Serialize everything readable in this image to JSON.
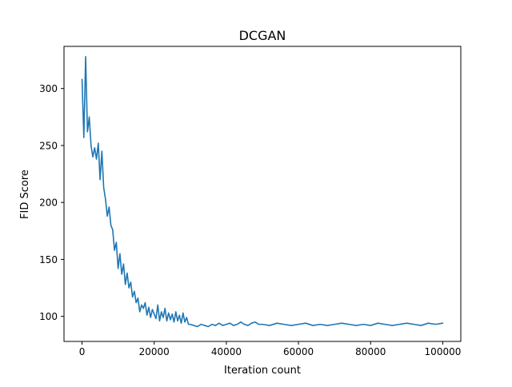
{
  "chart_data": {
    "type": "line",
    "title": "DCGAN",
    "xlabel": "Iteration count",
    "ylabel": "FID Score",
    "xlim": [
      -5000,
      105000
    ],
    "ylim": [
      78,
      337
    ],
    "xticks": [
      0,
      20000,
      40000,
      60000,
      80000,
      100000
    ],
    "yticks": [
      100,
      150,
      200,
      250,
      300
    ],
    "grid": false,
    "legend": "none",
    "series": [
      {
        "color": "#1f77b4",
        "x": [
          0,
          500,
          1000,
          1500,
          2000,
          2500,
          3000,
          3500,
          4000,
          4500,
          5000,
          5500,
          6000,
          6500,
          7000,
          7500,
          8000,
          8500,
          9000,
          9500,
          10000,
          10500,
          11000,
          11500,
          12000,
          12500,
          13000,
          13500,
          14000,
          14500,
          15000,
          15500,
          16000,
          16500,
          17000,
          17500,
          18000,
          18500,
          19000,
          19500,
          20000,
          20500,
          21000,
          21500,
          22000,
          22500,
          23000,
          23500,
          24000,
          24500,
          25000,
          25500,
          26000,
          26500,
          27000,
          27500,
          28000,
          28500,
          29000,
          29500,
          30000,
          31000,
          32000,
          33000,
          34000,
          35000,
          36000,
          37000,
          38000,
          39000,
          40000,
          41000,
          42000,
          43000,
          44000,
          45000,
          46000,
          47000,
          48000,
          49000,
          50000,
          52000,
          54000,
          56000,
          58000,
          60000,
          62000,
          64000,
          66000,
          68000,
          70000,
          72000,
          74000,
          76000,
          78000,
          80000,
          82000,
          84000,
          86000,
          88000,
          90000,
          92000,
          94000,
          96000,
          98000,
          100000
        ],
        "y": [
          308,
          257,
          328,
          262,
          275,
          250,
          240,
          248,
          238,
          252,
          220,
          245,
          213,
          203,
          188,
          196,
          180,
          176,
          158,
          165,
          142,
          155,
          137,
          146,
          128,
          138,
          125,
          130,
          117,
          122,
          112,
          116,
          104,
          110,
          107,
          112,
          101,
          108,
          99,
          106,
          102,
          98,
          110,
          96,
          104,
          99,
          107,
          96,
          103,
          97,
          102,
          95,
          104,
          96,
          101,
          94,
          103,
          95,
          99,
          93,
          93,
          92,
          91,
          93,
          92,
          91,
          93,
          92,
          94,
          92,
          93,
          94,
          92,
          93,
          95,
          93,
          92,
          94,
          95,
          93,
          93,
          92,
          94,
          93,
          92,
          93,
          94,
          92,
          93,
          92,
          93,
          94,
          93,
          92,
          93,
          92,
          94,
          93,
          92,
          93,
          94,
          93,
          92,
          94,
          93,
          94
        ]
      }
    ]
  }
}
